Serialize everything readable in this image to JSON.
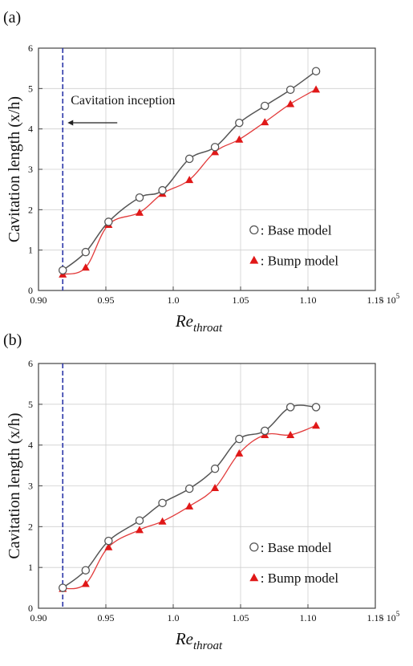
{
  "colors": {
    "base": "#555555",
    "bump": "#e23b3b",
    "bump_marker": "#e01818",
    "inception_line": "#2b35a8",
    "frame": "#444444",
    "grid": "#cfcfcf"
  },
  "chart_data": [
    {
      "type": "line",
      "panel": "(a)",
      "xlabel": "Re",
      "xlabel_sub": "throat",
      "x_exponent": "× 10",
      "x_exponent_power": "5",
      "ylabel": "Cavitation length (x/h)",
      "xlim": [
        0.9,
        1.15
      ],
      "ylim": [
        0,
        6
      ],
      "xticks": [
        "0.90",
        "0.95",
        "1.0",
        "1.05",
        "1.10",
        "1.15"
      ],
      "xtick_values": [
        0.9,
        0.95,
        1.0,
        1.05,
        1.1,
        1.15
      ],
      "yticks": [
        "0",
        "1",
        "2",
        "3",
        "4",
        "5",
        "6"
      ],
      "ytick_values": [
        0,
        1,
        2,
        3,
        4,
        5,
        6
      ],
      "grid": true,
      "legend_position": "bottom-right",
      "inception_x": 0.918,
      "annotation": "Cavitation inception",
      "series": [
        {
          "name": ": Base model",
          "marker": "open-circle",
          "x": [
            0.918,
            0.935,
            0.952,
            0.975,
            0.992,
            1.012,
            1.031,
            1.049,
            1.068,
            1.087,
            1.106
          ],
          "y": [
            0.5,
            0.95,
            1.7,
            2.3,
            2.48,
            3.26,
            3.55,
            4.15,
            4.57,
            4.97,
            5.43
          ]
        },
        {
          "name": ": Bump model",
          "marker": "filled-triangle",
          "x": [
            0.918,
            0.935,
            0.952,
            0.975,
            0.992,
            1.012,
            1.031,
            1.049,
            1.068,
            1.087,
            1.106
          ],
          "y": [
            0.4,
            0.57,
            1.63,
            1.93,
            2.4,
            2.74,
            3.43,
            3.74,
            4.17,
            4.62,
            4.98
          ]
        }
      ]
    },
    {
      "type": "line",
      "panel": "(b)",
      "xlabel": "Re",
      "xlabel_sub": "throat",
      "x_exponent": "× 10",
      "x_exponent_power": "5",
      "ylabel": "Cavitation length (x/h)",
      "xlim": [
        0.9,
        1.15
      ],
      "ylim": [
        0,
        6
      ],
      "xticks": [
        "0.90",
        "0.95",
        "1.0",
        "1.05",
        "1.10",
        "1.15"
      ],
      "xtick_values": [
        0.9,
        0.95,
        1.0,
        1.05,
        1.1,
        1.15
      ],
      "yticks": [
        "0",
        "1",
        "2",
        "3",
        "4",
        "5",
        "6"
      ],
      "ytick_values": [
        0,
        1,
        2,
        3,
        4,
        5,
        6
      ],
      "grid": true,
      "legend_position": "bottom-right",
      "inception_x": 0.918,
      "annotation": "",
      "series": [
        {
          "name": ": Base model",
          "marker": "open-circle",
          "x": [
            0.918,
            0.935,
            0.952,
            0.975,
            0.992,
            1.012,
            1.031,
            1.049,
            1.068,
            1.087,
            1.106
          ],
          "y": [
            0.5,
            0.93,
            1.65,
            2.15,
            2.58,
            2.93,
            3.42,
            4.15,
            4.35,
            4.93,
            4.93
          ]
        },
        {
          "name": ": Bump model",
          "marker": "filled-triangle",
          "x": [
            0.918,
            0.935,
            0.952,
            0.975,
            0.992,
            1.012,
            1.031,
            1.049,
            1.068,
            1.087,
            1.106
          ],
          "y": [
            0.48,
            0.6,
            1.5,
            1.92,
            2.13,
            2.5,
            2.95,
            3.8,
            4.25,
            4.25,
            4.48
          ]
        }
      ]
    }
  ]
}
